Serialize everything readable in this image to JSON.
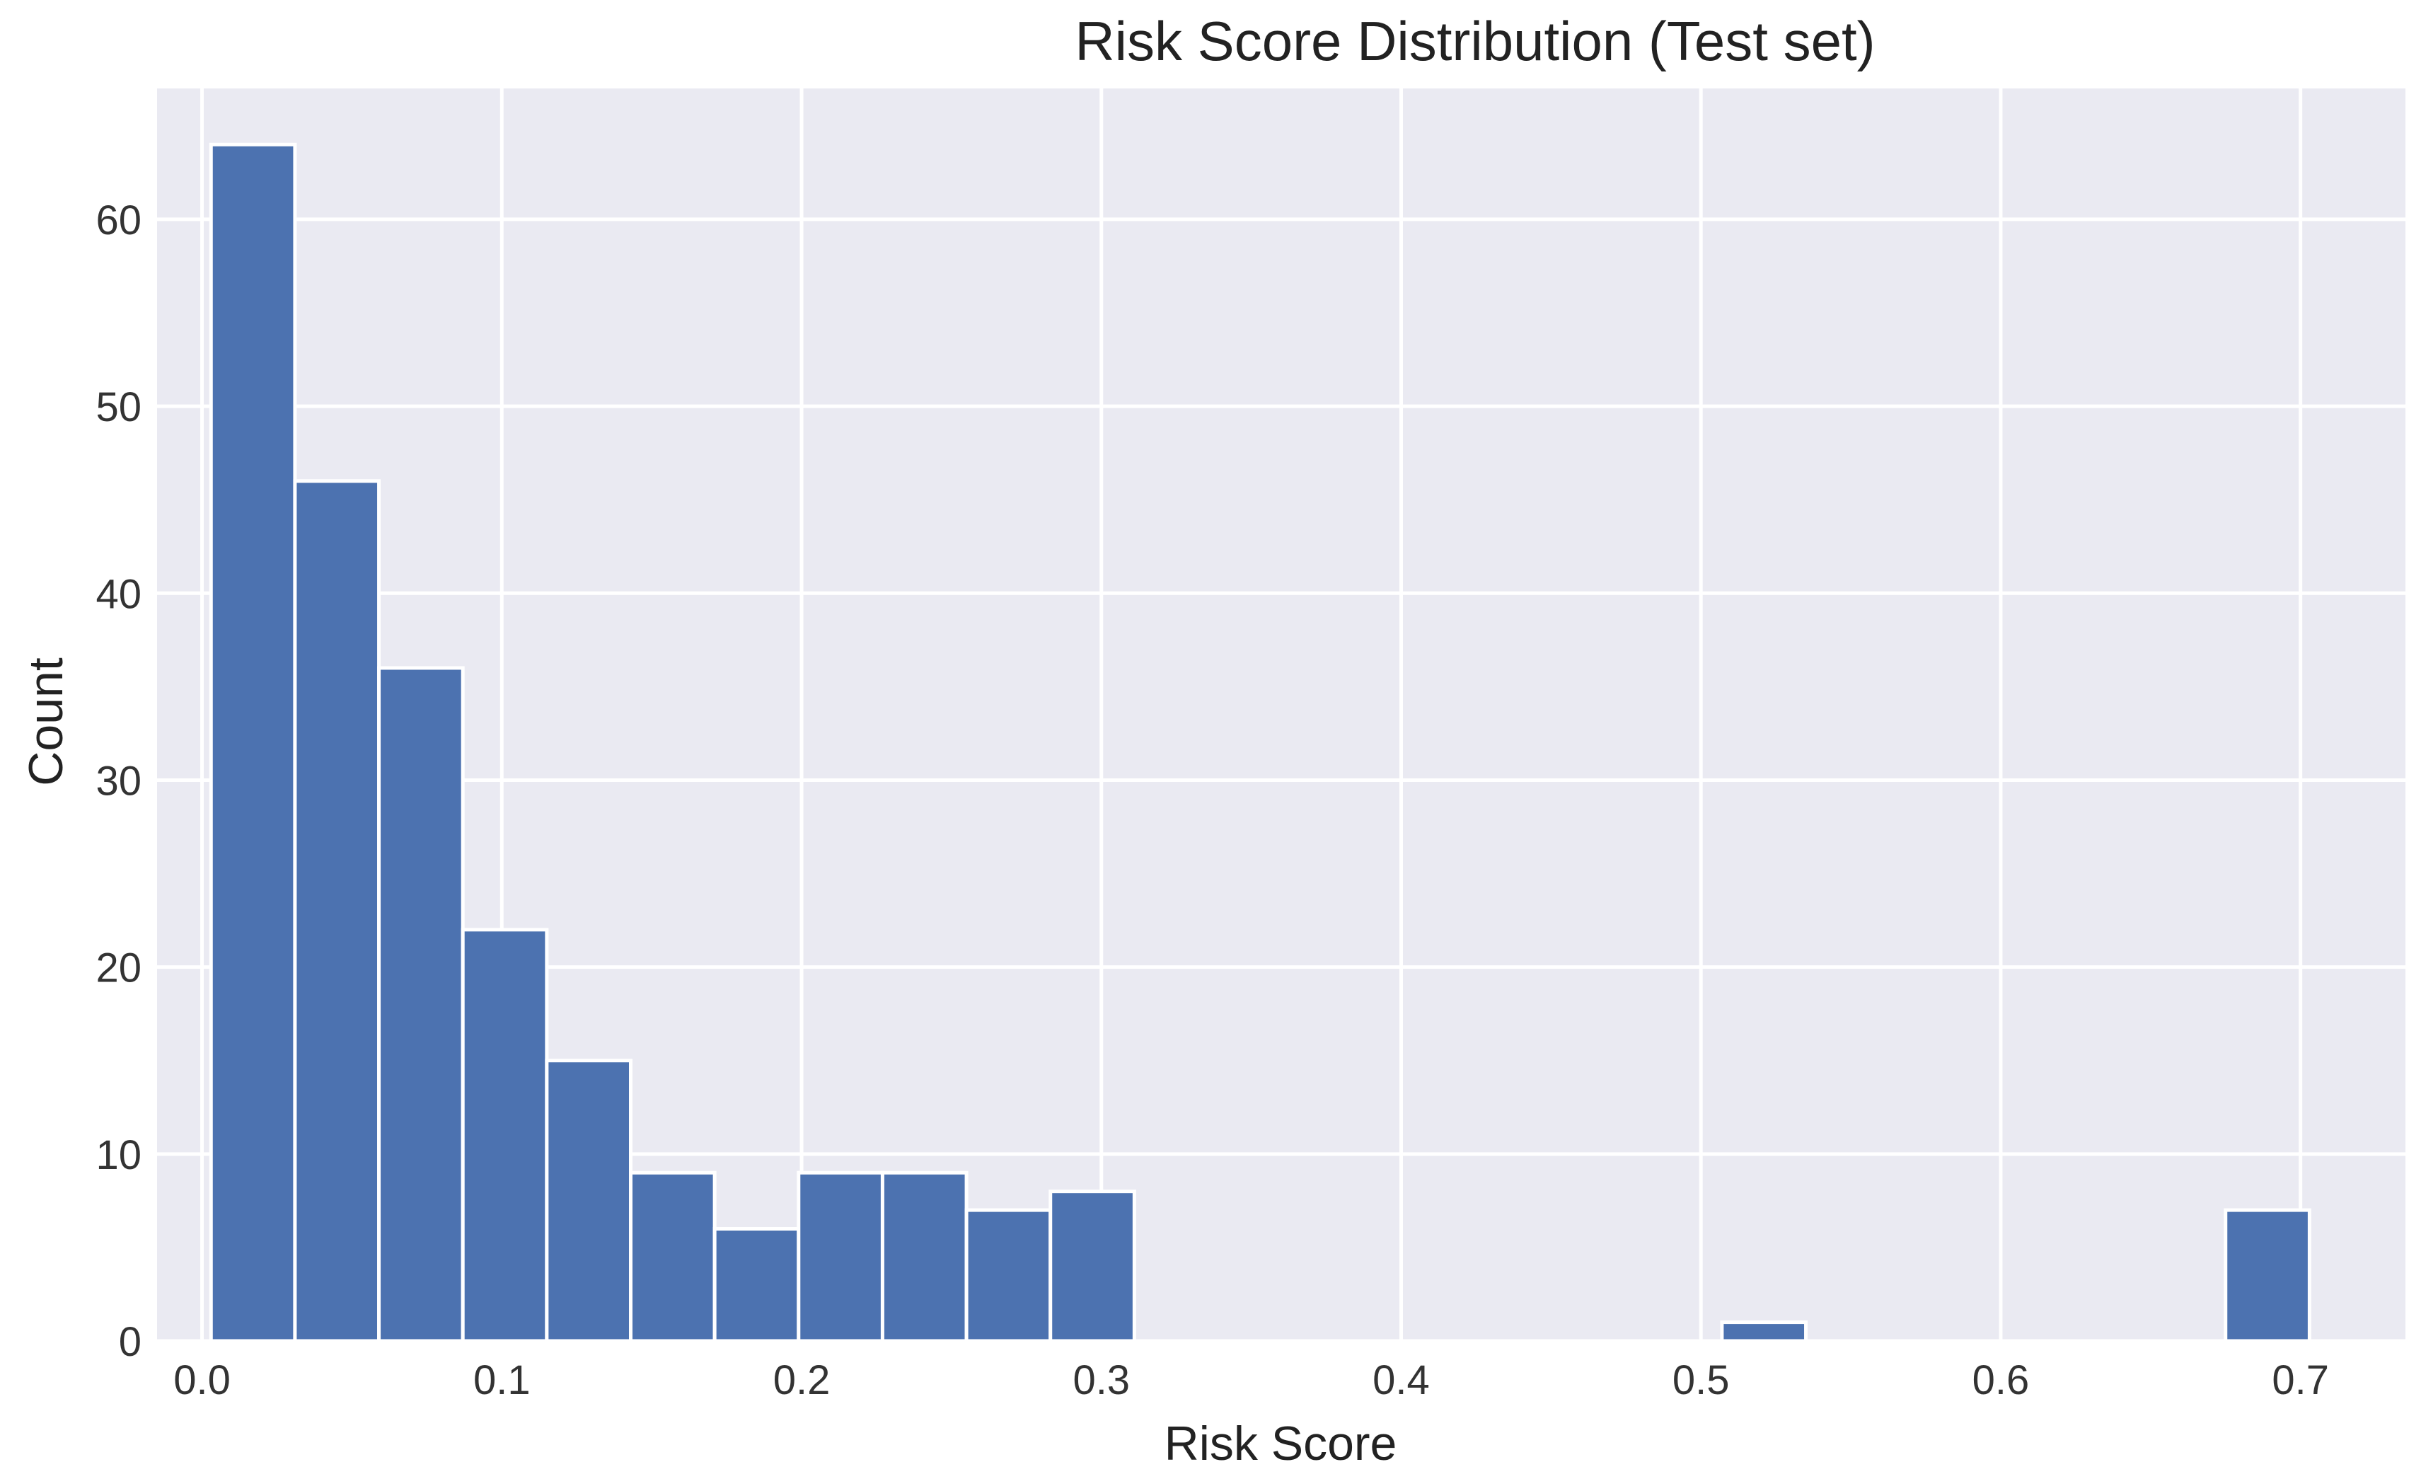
{
  "chart_data": {
    "type": "bar",
    "title": "Risk Score Distribution (Test set)",
    "xlabel": "Risk Score",
    "ylabel": "Count",
    "xlim": [
      -0.015,
      0.735
    ],
    "ylim": [
      0,
      67
    ],
    "xticks": [
      0.0,
      0.1,
      0.2,
      0.3,
      0.4,
      0.5,
      0.6,
      0.7
    ],
    "xtick_labels": [
      "0.0",
      "0.1",
      "0.2",
      "0.3",
      "0.4",
      "0.5",
      "0.6",
      "0.7"
    ],
    "yticks": [
      0,
      10,
      20,
      30,
      40,
      50,
      60
    ],
    "ytick_labels": [
      "0",
      "10",
      "20",
      "30",
      "40",
      "50",
      "60"
    ],
    "grid": true,
    "bin_edges": [
      0.003,
      0.031,
      0.059,
      0.087,
      0.115,
      0.143,
      0.171,
      0.199,
      0.227,
      0.255,
      0.283,
      0.311,
      0.339,
      0.367,
      0.395,
      0.423,
      0.451,
      0.479,
      0.507,
      0.535,
      0.563,
      0.591,
      0.619,
      0.647,
      0.675,
      0.703
    ],
    "values": [
      64,
      46,
      36,
      22,
      15,
      9,
      6,
      9,
      9,
      7,
      8,
      0,
      0,
      0,
      0,
      0,
      0,
      0,
      1,
      0,
      0,
      0,
      0,
      0,
      7
    ],
    "colors": {
      "bar": "#4c72b0",
      "bar_edge": "#ffffff",
      "plot_bg": "#eaeaf2",
      "grid": "#ffffff"
    }
  }
}
